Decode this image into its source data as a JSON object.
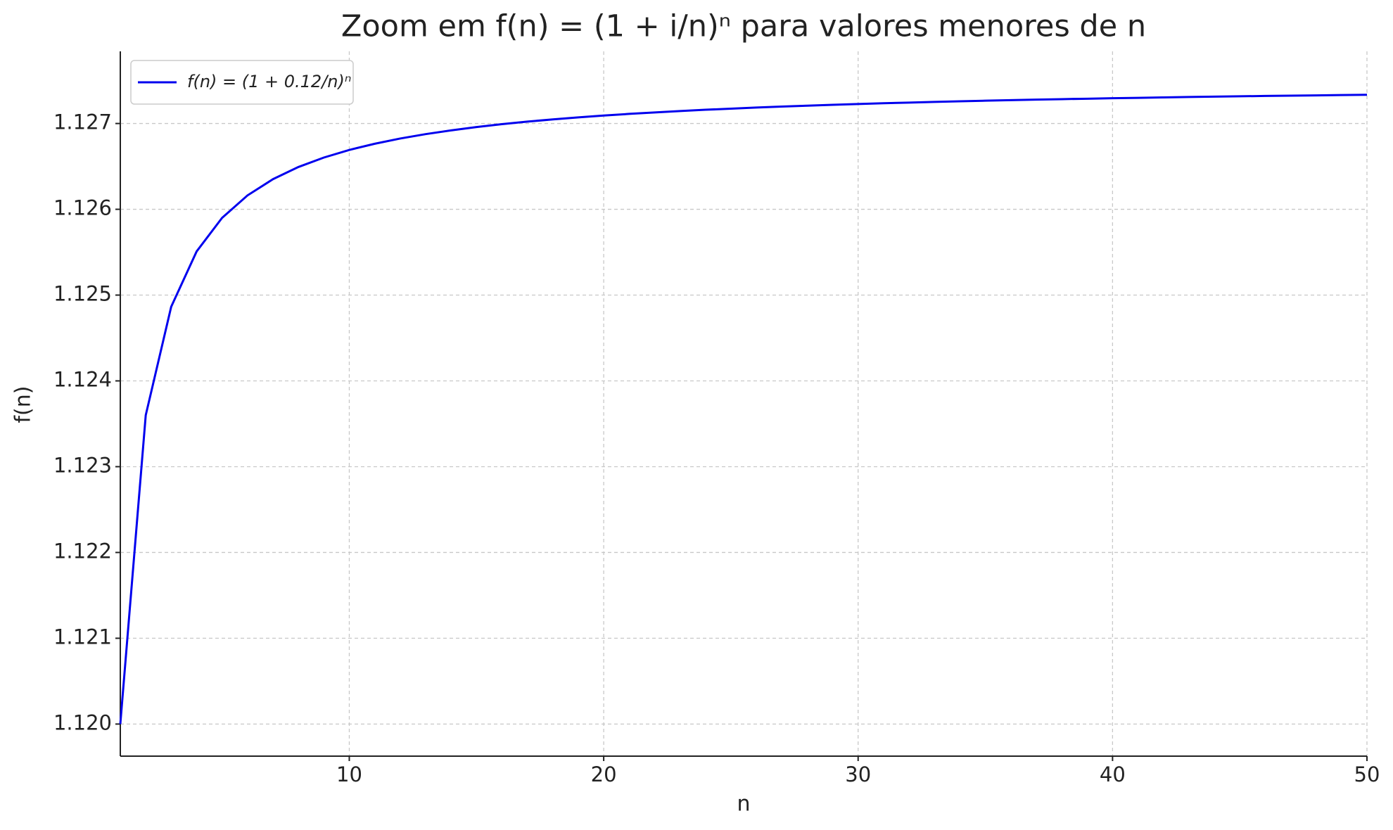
{
  "chart_data": {
    "type": "line",
    "title": "Zoom em f(n) = (1 + i/n)ⁿ para valores menores de n",
    "x_label": "n",
    "y_label": "f(n)",
    "x": [
      1,
      2,
      3,
      4,
      5,
      6,
      7,
      8,
      9,
      10,
      11,
      12,
      13,
      14,
      15,
      16,
      17,
      18,
      19,
      20,
      21,
      22,
      23,
      24,
      25,
      26,
      27,
      28,
      29,
      30,
      31,
      32,
      33,
      34,
      35,
      36,
      37,
      38,
      39,
      40,
      41,
      42,
      43,
      44,
      45,
      46,
      47,
      48,
      49,
      50
    ],
    "series": [
      {
        "name": "f(n) = (1 + 0.12/n)ⁿ",
        "color": "#0000ee",
        "values": [
          1.12,
          1.1236,
          1.124864,
          1.125509,
          1.1259,
          1.126162,
          1.126351,
          1.126493,
          1.126603,
          1.126692,
          1.126764,
          1.126825,
          1.126876,
          1.12692,
          1.126959,
          1.126992,
          1.127022,
          1.127048,
          1.127071,
          1.127093,
          1.127112,
          1.127129,
          1.127145,
          1.12716,
          1.127173,
          1.127186,
          1.127197,
          1.127208,
          1.127218,
          1.127227,
          1.127236,
          1.127244,
          1.127252,
          1.127259,
          1.127266,
          1.127272,
          1.127278,
          1.127284,
          1.127289,
          1.127295,
          1.127299,
          1.127304,
          1.127309,
          1.127313,
          1.127317,
          1.127321,
          1.127325,
          1.127328,
          1.127332,
          1.127335
        ]
      }
    ],
    "xlim": [
      1,
      50
    ],
    "xticks": [
      10,
      20,
      30,
      40,
      50
    ],
    "ylim": [
      1.119626,
      1.127841
    ],
    "yticks": [
      {
        "value": 1.12,
        "label": "1.120"
      },
      1.121,
      1.122,
      1.123,
      1.124,
      1.125,
      1.126,
      1.127
    ],
    "grid": true,
    "legend": "upper left"
  }
}
